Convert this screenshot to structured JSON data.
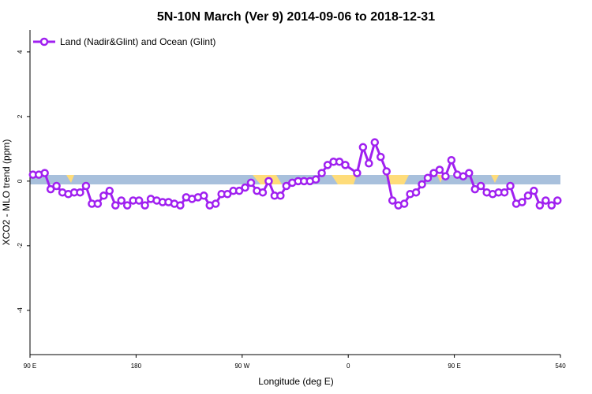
{
  "chart_data": {
    "type": "line",
    "title": "5N-10N March (Ver 9)   2014-09-06 to 2018-12-31",
    "xlabel": "Longitude (deg E)",
    "ylabel": "XCO2 - MLO trend (ppm)",
    "x": [
      92.5,
      97.5,
      102.5,
      107.5,
      112.5,
      117.5,
      122.5,
      127.5,
      132.5,
      137.5,
      142.5,
      147.5,
      152.5,
      157.5,
      162.5,
      167.5,
      172.5,
      177.5,
      182.5,
      187.5,
      192.5,
      197.5,
      202.5,
      207.5,
      212.5,
      217.5,
      222.5,
      227.5,
      232.5,
      237.5,
      242.5,
      247.5,
      252.5,
      257.5,
      262.5,
      267.5,
      272.5,
      277.5,
      282.5,
      287.5,
      292.5,
      297.5,
      302.5,
      307.5,
      312.5,
      317.5,
      322.5,
      327.5,
      332.5,
      337.5,
      342.5,
      347.5,
      352.5,
      357.5,
      367.5,
      372.5,
      377.5,
      382.5,
      387.5,
      392.5,
      397.5,
      402.5,
      407.5,
      412.5,
      417.5,
      422.5,
      427.5,
      432.5,
      437.5,
      442.5,
      447.5,
      452.5,
      457.5,
      462.5,
      467.5,
      472.5,
      477.5,
      482.5,
      487.5,
      492.5,
      497.5,
      502.5,
      507.5,
      512.5,
      517.5,
      522.5,
      527.5,
      532.5,
      537.5
    ],
    "series": [
      {
        "name": "Land (Nadir&Glint) and Ocean (Glint)",
        "color": "#a020f0",
        "values": [
          0.2,
          0.2,
          0.25,
          -0.25,
          -0.15,
          -0.35,
          -0.4,
          -0.35,
          -0.35,
          -0.15,
          -0.7,
          -0.7,
          -0.45,
          -0.3,
          -0.75,
          -0.6,
          -0.75,
          -0.6,
          -0.6,
          -0.75,
          -0.55,
          -0.6,
          -0.65,
          -0.65,
          -0.7,
          -0.75,
          -0.5,
          -0.55,
          -0.5,
          -0.45,
          -0.75,
          -0.7,
          -0.4,
          -0.4,
          -0.3,
          -0.3,
          -0.2,
          -0.05,
          -0.3,
          -0.35,
          0.0,
          -0.45,
          -0.45,
          -0.15,
          -0.05,
          0.0,
          0.0,
          0.0,
          0.05,
          0.25,
          0.5,
          0.6,
          0.6,
          0.5,
          0.25,
          1.05,
          0.55,
          1.2,
          0.75,
          0.3,
          -0.6,
          -0.75,
          -0.7,
          -0.4,
          -0.35,
          -0.1,
          0.1,
          0.25,
          0.35,
          0.15,
          0.65,
          0.2,
          0.15,
          0.25,
          -0.25,
          -0.15,
          -0.35,
          -0.4,
          -0.35,
          -0.35,
          -0.15,
          -0.7,
          -0.65,
          -0.45,
          -0.3,
          -0.75,
          -0.6,
          -0.75,
          -0.6
        ]
      }
    ],
    "xlim": [
      90,
      540
    ],
    "xticks": [
      {
        "value": 90,
        "label": "90 E"
      },
      180,
      {
        "value": 270,
        "label": "90 W"
      },
      {
        "value": 360,
        "label": "0"
      },
      {
        "value": 450,
        "label": "90 E"
      },
      540
    ],
    "ylim": [
      -5.37,
      4.68
    ],
    "yticks": [
      -4,
      -2,
      0,
      2,
      4
    ],
    "legend": "top-left"
  }
}
